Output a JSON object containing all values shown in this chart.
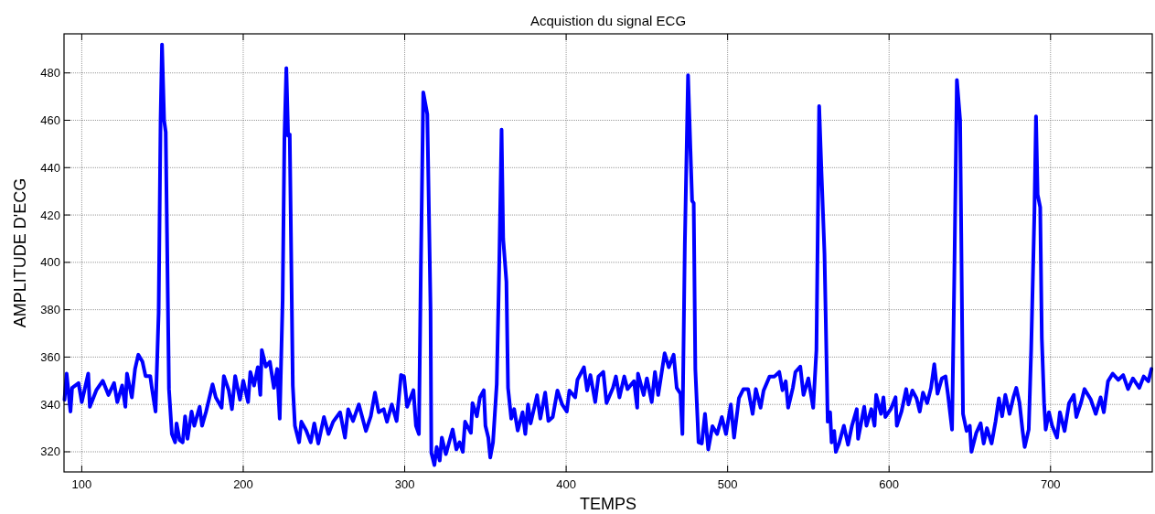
{
  "chart_data": {
    "type": "line",
    "title": "Acquistion du signal ECG",
    "xlabel": "TEMPS",
    "ylabel": "AMPLITUDE D'ECG",
    "xlim": [
      89,
      763
    ],
    "ylim": [
      311.5,
      496.5
    ],
    "xticks": [
      100,
      200,
      300,
      400,
      500,
      600,
      700
    ],
    "yticks": [
      320,
      340,
      360,
      380,
      400,
      420,
      440,
      460,
      480
    ],
    "grid": true,
    "line_style": "solid",
    "marker": "none",
    "series": [
      {
        "color": "#0000ff",
        "x": [
          89.3,
          90.6,
          93,
          94,
          98,
          100,
          104,
          105,
          109,
          113,
          116.5,
          120,
          122,
          125,
          127,
          128,
          131,
          133,
          135,
          137.6,
          139.5,
          142.4,
          143.4,
          145.7,
          147.6,
          148.8,
          149.7,
          151,
          152,
          154,
          155.8,
          157.8,
          158.7,
          160.6,
          162.5,
          164,
          165.5,
          168,
          169.7,
          173,
          174.5,
          177,
          181,
          183,
          186.6,
          188,
          191,
          193,
          195,
          198,
          200,
          203,
          204.4,
          206.7,
          209,
          210.6,
          211.5,
          214,
          216.5,
          219,
          221,
          222.6,
          224.4,
          225.5,
          226.7,
          227.8,
          228.8,
          230.7,
          232,
          234.6,
          236,
          239,
          241.8,
          244,
          246.5,
          250,
          252.8,
          255.7,
          260,
          263,
          265,
          268,
          271.6,
          276,
          279,
          281.6,
          283.9,
          287,
          289,
          292,
          295,
          297.7,
          299.6,
          301.5,
          305.4,
          307,
          308.8,
          310,
          311.5,
          314,
          316,
          316.5,
          318.4,
          319.8,
          321.7,
          323,
          325.5,
          329.7,
          332,
          334,
          336,
          337.4,
          341,
          342,
          344.7,
          346.6,
          349,
          350,
          351.8,
          353,
          354.7,
          357,
          358.5,
          360,
          361,
          363,
          364,
          366,
          367.8,
          370,
          373,
          374.7,
          376.4,
          378,
          382,
          384,
          387,
          389,
          391.7,
          394.6,
          397.5,
          400.4,
          402,
          405.6,
          407,
          411,
          413,
          415,
          418,
          420,
          423,
          425,
          429,
          430.8,
          433,
          436,
          438,
          442,
          444,
          444.5,
          448,
          450,
          453,
          455,
          457,
          461,
          463.6,
          466.6,
          468.5,
          470.8,
          472,
          473.5,
          475.5,
          477,
          478,
          479,
          480,
          482,
          484,
          486,
          488,
          490.6,
          493.5,
          496.4,
          499,
          502,
          504,
          507,
          509.8,
          512.7,
          515.5,
          517.5,
          520.4,
          522.3,
          526,
          529,
          532,
          534,
          536,
          537.5,
          540.4,
          542,
          545,
          547,
          550,
          553,
          555,
          556.7,
          558,
          560,
          562,
          563.5,
          564.4,
          566,
          567,
          569,
          572,
          574.6,
          577,
          580,
          580.8,
          584.6,
          586,
          589,
          591,
          592,
          595,
          596.5,
          597.7,
          601,
          604,
          604.8,
          607.7,
          610.6,
          612,
          614.4,
          617,
          619,
          621,
          623.6,
          626,
          628,
          630,
          632.7,
          635,
          636.5,
          639,
          640.4,
          642,
          644,
          645.8,
          648,
          650,
          651,
          654,
          656.7,
          658.6,
          660.6,
          663.5,
          666,
          668,
          670,
          672,
          674.6,
          677,
          678.8,
          680.8,
          682.7,
          684,
          686.5,
          688,
          690,
          691,
          692,
          693.6,
          694.6,
          696,
          697,
          699,
          701,
          704,
          705.8,
          708.7,
          711.5,
          714.4,
          716,
          719,
          721,
          725,
          728,
          731,
          733,
          735.6,
          738.5,
          742,
          745,
          748,
          751,
          755,
          757.7,
          760.6,
          762.5
        ],
        "values": [
          342,
          353,
          337,
          347,
          349,
          341,
          353,
          339,
          346,
          350,
          344,
          349,
          341,
          348,
          339,
          353,
          343,
          355,
          361,
          358,
          352,
          352,
          347,
          337,
          378.7,
          460,
          492,
          460,
          455,
          346.5,
          327.5,
          324,
          332,
          325,
          324,
          335,
          325.5,
          337,
          331,
          339,
          331,
          337,
          348.5,
          343,
          338.6,
          352,
          346,
          338,
          352,
          342,
          350,
          341,
          353.7,
          348,
          355.7,
          344,
          363,
          356,
          358,
          347,
          355,
          334,
          384,
          452,
          482,
          453.5,
          454,
          348,
          331,
          324,
          332.7,
          329,
          324,
          332,
          323.5,
          334.7,
          327.5,
          332.7,
          336.7,
          326,
          338,
          333,
          340,
          328.8,
          335,
          345,
          336.7,
          338,
          332.7,
          340,
          333,
          352.4,
          351.8,
          339,
          346,
          331,
          327.5,
          397,
          471.8,
          462.6,
          381,
          319.6,
          314.4,
          322,
          316.3,
          326,
          319,
          329.4,
          321,
          324,
          320,
          332.7,
          328,
          340.6,
          335,
          343,
          346,
          331,
          326,
          317.6,
          324,
          348.5,
          397,
          456,
          410,
          391.8,
          347,
          334,
          338,
          329,
          336.7,
          327.5,
          340,
          332,
          343.9,
          334,
          345,
          333,
          334.7,
          345.9,
          340,
          337,
          345.9,
          343,
          350.4,
          355.7,
          345.9,
          352.4,
          341,
          351.8,
          353.7,
          340.6,
          347,
          351.8,
          343,
          351.8,
          346.5,
          349.8,
          338.6,
          353,
          344,
          351,
          341,
          353.7,
          344,
          361.6,
          355.7,
          361,
          347,
          344.5,
          327.5,
          407.5,
          479,
          447,
          426,
          425,
          355,
          324,
          323.5,
          336,
          321,
          330.8,
          327.5,
          334.7,
          327.5,
          340,
          326,
          342.6,
          346.5,
          346.5,
          336,
          346.5,
          338.6,
          345.9,
          351.8,
          351.8,
          353.7,
          346,
          349.8,
          338.6,
          347,
          353.7,
          356,
          344,
          351,
          338.6,
          362.9,
          466,
          440.5,
          403.6,
          332.7,
          336.7,
          324,
          328.8,
          320,
          323.5,
          331,
          323,
          331,
          338,
          325.5,
          339,
          331,
          338,
          331,
          344,
          336,
          343,
          334.7,
          338,
          343,
          331,
          337,
          346.5,
          340,
          345.9,
          342.6,
          337,
          345,
          340.6,
          347,
          357,
          344.5,
          351,
          351.8,
          344,
          329.4,
          394,
          477,
          460,
          336,
          328.8,
          331,
          320,
          328,
          332,
          323.5,
          330,
          323.5,
          333,
          342.6,
          335,
          344,
          336,
          343,
          347,
          340.6,
          328.8,
          322,
          329.4,
          363,
          420.7,
          461.6,
          428.7,
          423.3,
          368,
          340.6,
          329.4,
          336.7,
          331,
          326,
          336.7,
          328.8,
          340.6,
          344,
          334.7,
          341,
          346.5,
          342,
          336,
          343,
          336.7,
          349.8,
          353,
          350.4,
          352.4,
          346.5,
          351,
          347,
          351.8,
          349.8,
          355
        ]
      }
    ]
  }
}
